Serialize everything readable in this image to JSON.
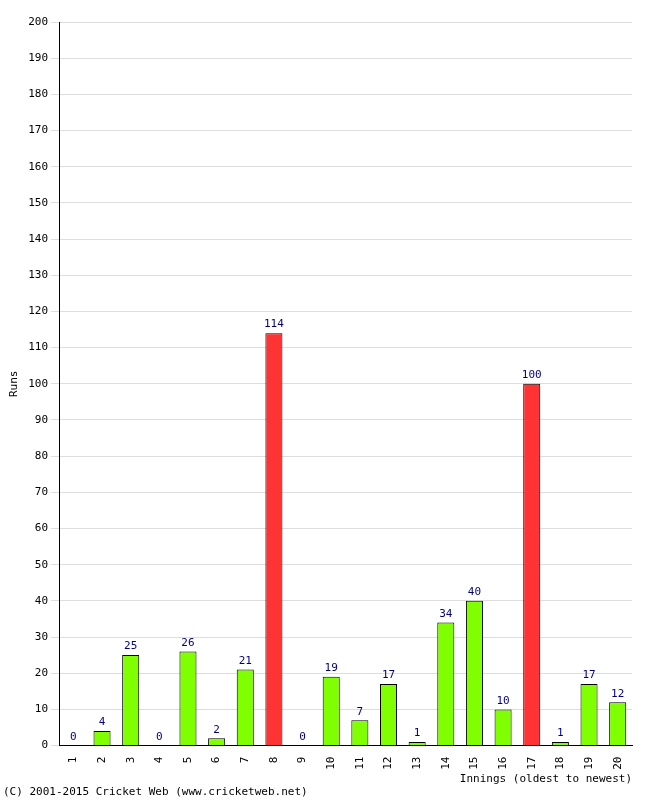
{
  "chart_data": {
    "type": "bar",
    "y_label": "Runs",
    "x_label": "Innings (oldest to newest)",
    "annotations": [
      "(C) 2001-2015 Cricket Web (www.cricketweb.net)"
    ],
    "categories": [
      "1",
      "2",
      "3",
      "4",
      "5",
      "6",
      "7",
      "8",
      "9",
      "10",
      "11",
      "12",
      "13",
      "14",
      "15",
      "16",
      "17",
      "18",
      "19",
      "20"
    ],
    "values": [
      0,
      4,
      25,
      0,
      26,
      2,
      21,
      114,
      0,
      19,
      7,
      17,
      1,
      34,
      40,
      10,
      100,
      1,
      17,
      12
    ],
    "colors": [
      "#7fff00",
      "#7fff00",
      "#7fff00",
      "#7fff00",
      "#7fff00",
      "#7fff00",
      "#7fff00",
      "#ff3333",
      "#7fff00",
      "#7fff00",
      "#7fff00",
      "#7fff00",
      "#7fff00",
      "#7fff00",
      "#7fff00",
      "#7fff00",
      "#ff3333",
      "#7fff00",
      "#7fff00",
      "#7fff00"
    ],
    "ylim": [
      0,
      200
    ],
    "yticks": [
      0,
      10,
      20,
      30,
      40,
      50,
      60,
      70,
      80,
      90,
      100,
      110,
      120,
      130,
      140,
      150,
      160,
      170,
      180,
      190,
      200
    ],
    "grid": true,
    "data_labels": true
  }
}
